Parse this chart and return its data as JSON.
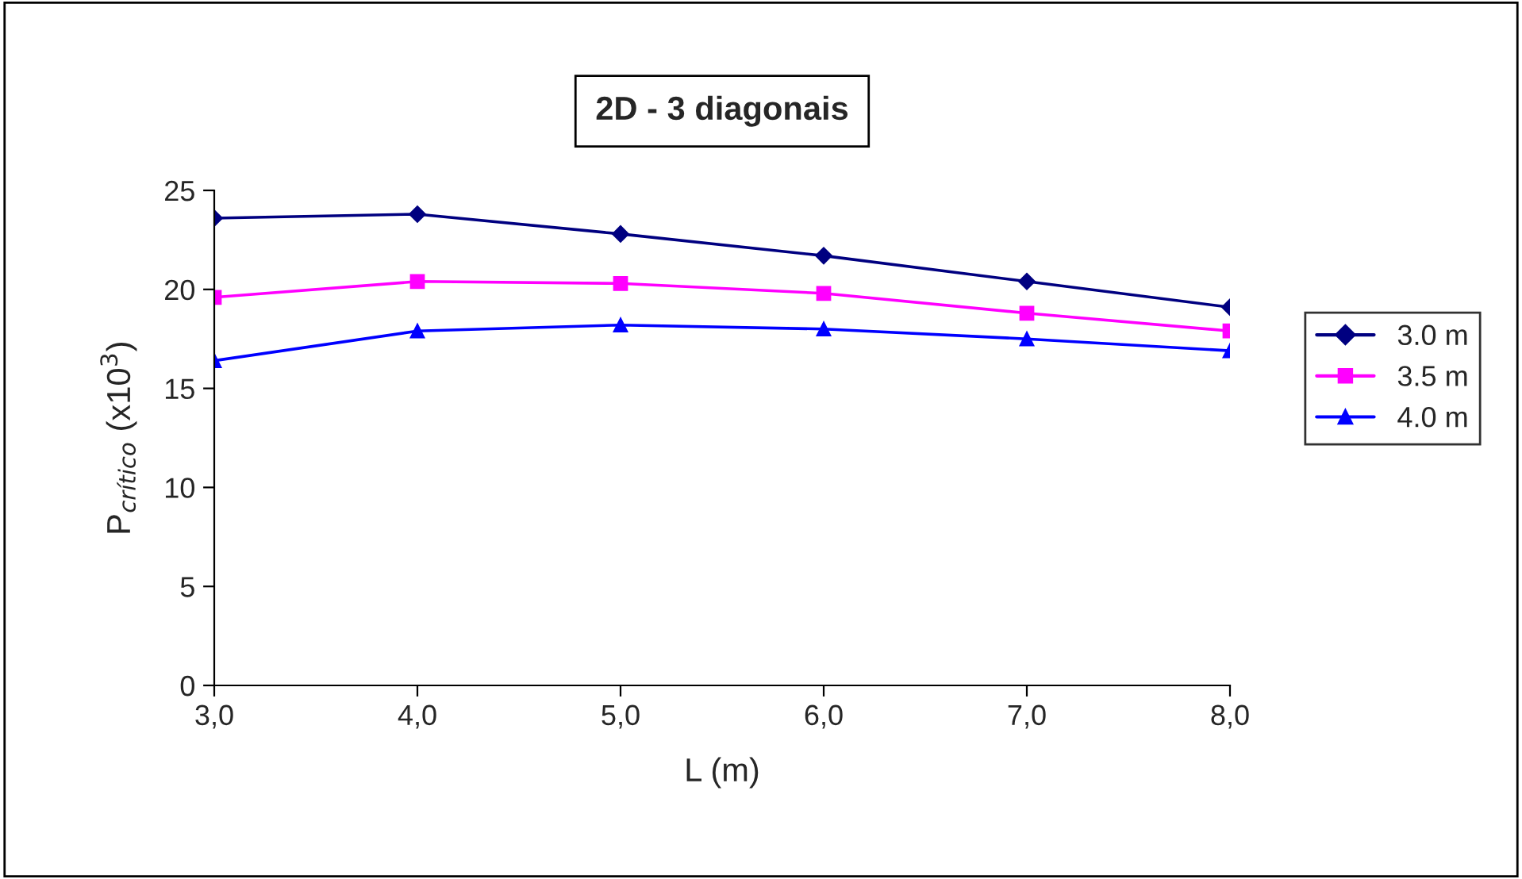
{
  "chart_data": {
    "type": "line",
    "title": "2D - 3 diagonais",
    "xlabel": "L (m)",
    "ylabel": "P$_{crítico}$ (x10$^{3}$)",
    "x": [
      3,
      4,
      5,
      6,
      7,
      8
    ],
    "series": [
      {
        "name": "3.0 m",
        "color": "#000080",
        "marker": "diamond",
        "values": [
          23.6,
          23.8,
          22.8,
          21.7,
          20.4,
          19.1
        ]
      },
      {
        "name": "3.5 m",
        "color": "#ff00ff",
        "marker": "square",
        "values": [
          19.6,
          20.4,
          20.3,
          19.8,
          18.8,
          17.9
        ]
      },
      {
        "name": "4.0 m",
        "color": "#0000ff",
        "marker": "triangle",
        "values": [
          16.4,
          17.9,
          18.2,
          18.0,
          17.5,
          16.9
        ]
      }
    ],
    "xlim": [
      3,
      8
    ],
    "xticks": [
      {
        "value": 3,
        "label": "3,0"
      },
      {
        "value": 4,
        "label": "4,0"
      },
      {
        "value": 5,
        "label": "5,0"
      },
      {
        "value": 6,
        "label": "6,0"
      },
      {
        "value": 7,
        "label": "7,0"
      },
      {
        "value": 8,
        "label": "8,0"
      }
    ],
    "ylim": [
      0,
      25
    ],
    "yticks": [
      0,
      5,
      10,
      15,
      20,
      25
    ],
    "grid": false,
    "legend": "right",
    "line_style": "solid"
  }
}
